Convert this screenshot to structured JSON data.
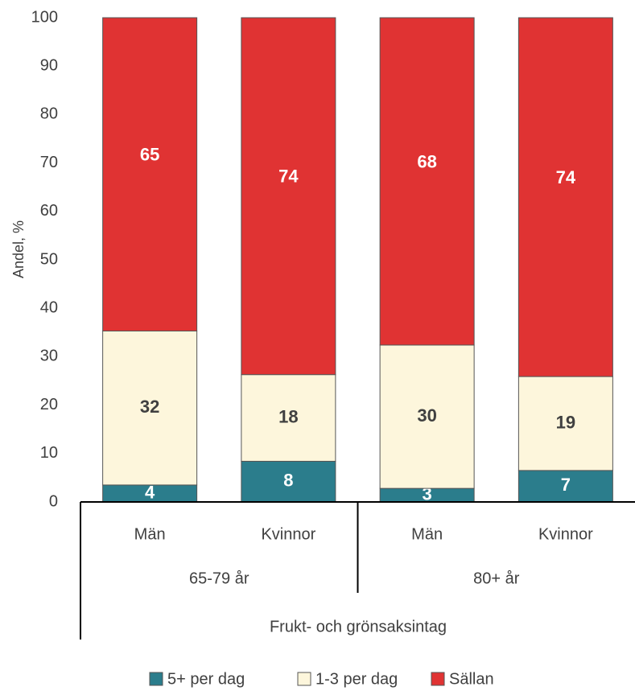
{
  "chart_data": {
    "type": "stacked_bar",
    "y_label": "Andel, %",
    "x_label": "Frukt- och grönsaksintag",
    "groups": [
      {
        "name": "65-79 år",
        "categories": [
          "Män",
          "Kvinnor"
        ]
      },
      {
        "name": "80+ år",
        "categories": [
          "Män",
          "Kvinnor"
        ]
      }
    ],
    "series": [
      {
        "name": "5+ per dag",
        "color": "#2b7d8c",
        "values": [
          3.5,
          8.4,
          2.8,
          6.5
        ],
        "value_labels": [
          "4",
          "8",
          "3",
          "7"
        ]
      },
      {
        "name": "1-3 per dag",
        "color": "#fdf6dc",
        "values": [
          31.8,
          17.9,
          29.6,
          19.4
        ],
        "value_labels": [
          "32",
          "18",
          "30",
          "19"
        ]
      },
      {
        "name": "Sällan",
        "color": "#e03333",
        "values": [
          64.7,
          73.7,
          67.6,
          74.1
        ],
        "value_labels": [
          "65",
          "74",
          "68",
          "74"
        ]
      }
    ],
    "ylim": [
      0,
      100
    ],
    "yticks": [
      0,
      10,
      20,
      30,
      40,
      50,
      60,
      70,
      80,
      90,
      100
    ],
    "grid": false,
    "legend": "bottom"
  }
}
